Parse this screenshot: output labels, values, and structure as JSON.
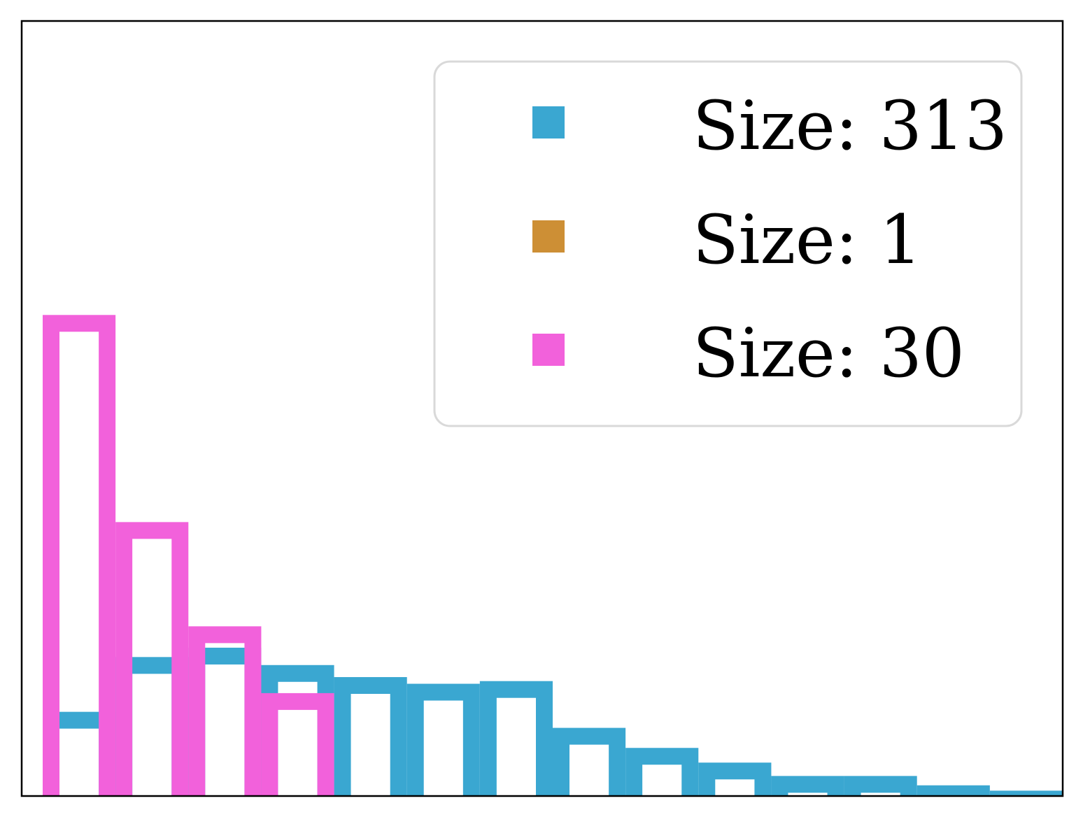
{
  "chart_data": {
    "type": "bar",
    "title": "",
    "xlabel": "",
    "ylabel": "",
    "xlim": [
      0,
      14
    ],
    "ylim": [
      0,
      0.58
    ],
    "grid": false,
    "legend_position": "top-right",
    "series": [
      {
        "name": "Size: 313",
        "color": "#3aa7d1",
        "style": "step-outline",
        "bins": [
          0,
          1,
          2,
          3,
          4,
          5,
          6,
          7,
          8,
          9,
          10,
          11,
          12,
          13,
          14
        ],
        "values": [
          0.063,
          0.104,
          0.111,
          0.098,
          0.089,
          0.084,
          0.086,
          0.051,
          0.036,
          0.025,
          0.015,
          0.015,
          0.008,
          0.004
        ]
      },
      {
        "name": "Size: 1",
        "color": "#cd8f35",
        "style": "step-outline",
        "bins": [],
        "values": []
      },
      {
        "name": "Size: 30",
        "color": "#f261db",
        "style": "step-outline",
        "bins": [
          0,
          1,
          2,
          3,
          4
        ],
        "values": [
          0.36,
          0.205,
          0.127,
          0.077
        ]
      }
    ]
  }
}
